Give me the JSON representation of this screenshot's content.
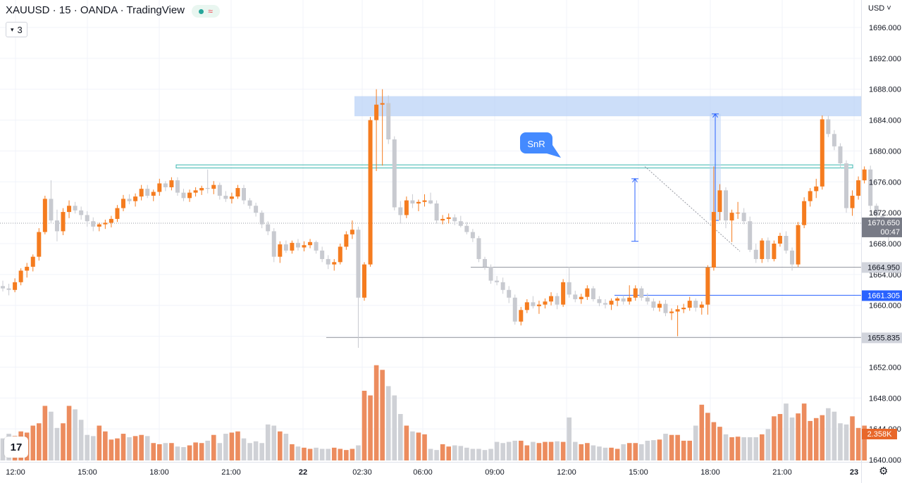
{
  "header": {
    "symbol": "XAUUSD",
    "interval": "15",
    "broker": "OANDA",
    "platform": "TradingView",
    "separator": " · ",
    "indicator_count": "3",
    "currency": "USD"
  },
  "chart_data": {
    "type": "candlestick",
    "time_axis_labels": [
      "12:00",
      "15:00",
      "18:00",
      "21:00",
      "22",
      "02:30",
      "06:00",
      "09:00",
      "12:00",
      "15:00",
      "18:00",
      "21:00",
      "23"
    ],
    "price_axis_labels": [
      "1696.000",
      "1692.000",
      "1688.000",
      "1684.000",
      "1680.000",
      "1676.000",
      "1672.000",
      "1668.000",
      "1664.000",
      "1660.000",
      "1656.000",
      "1652.000",
      "1648.000",
      "1644.000",
      "1640.000"
    ],
    "ylim": [
      1639.5,
      1698
    ],
    "grid": true,
    "colors": {
      "up": "#f57c1f",
      "down": "#c8cad0",
      "volume_up": "#ec8c5e",
      "volume_down": "#cfd1d6",
      "zone": "#bbd3f7",
      "line_teal": "#3bb7b0",
      "line_blue": "#2962ff",
      "line_gray": "#9598a1",
      "last_price": "#787b86",
      "label_orange": "#f57c1f",
      "label_blue": "#2962ff",
      "label_gray": "#d1d4dc"
    },
    "candles": [
      [
        1662.5,
        1663.2,
        1661.8,
        1662.2
      ],
      [
        1662.2,
        1662.8,
        1661.3,
        1662.0
      ],
      [
        1662.0,
        1663.5,
        1661.7,
        1663.0
      ],
      [
        1663.0,
        1664.8,
        1662.6,
        1664.5
      ],
      [
        1664.5,
        1665.5,
        1663.6,
        1665.0
      ],
      [
        1665.0,
        1666.6,
        1664.4,
        1666.3
      ],
      [
        1666.3,
        1670.0,
        1665.8,
        1669.5
      ],
      [
        1669.5,
        1674.2,
        1669.2,
        1673.8
      ],
      [
        1673.8,
        1676.2,
        1670.6,
        1671.0
      ],
      [
        1671.0,
        1672.4,
        1668.3,
        1669.6
      ],
      [
        1669.6,
        1672.6,
        1669.1,
        1672.1
      ],
      [
        1672.1,
        1673.6,
        1671.3,
        1672.9
      ],
      [
        1672.9,
        1673.4,
        1671.9,
        1672.3
      ],
      [
        1672.3,
        1672.8,
        1671.1,
        1671.7
      ],
      [
        1671.7,
        1672.2,
        1670.2,
        1670.9
      ],
      [
        1670.9,
        1671.4,
        1669.6,
        1670.2
      ],
      [
        1670.2,
        1670.7,
        1669.6,
        1670.5
      ],
      [
        1670.5,
        1671.1,
        1669.9,
        1670.7
      ],
      [
        1670.7,
        1671.6,
        1670.1,
        1671.2
      ],
      [
        1671.2,
        1673.0,
        1670.8,
        1672.6
      ],
      [
        1672.6,
        1674.3,
        1672.2,
        1673.8
      ],
      [
        1673.8,
        1674.4,
        1673.1,
        1673.5
      ],
      [
        1673.5,
        1674.5,
        1672.8,
        1674.1
      ],
      [
        1674.1,
        1675.6,
        1673.6,
        1675.1
      ],
      [
        1675.1,
        1675.6,
        1673.9,
        1674.2
      ],
      [
        1674.2,
        1675.0,
        1673.5,
        1674.7
      ],
      [
        1674.7,
        1676.4,
        1674.2,
        1675.8
      ],
      [
        1675.8,
        1676.1,
        1674.8,
        1675.3
      ],
      [
        1675.3,
        1676.6,
        1674.9,
        1676.2
      ],
      [
        1676.2,
        1676.6,
        1674.2,
        1674.6
      ],
      [
        1674.6,
        1675.1,
        1673.5,
        1673.9
      ],
      [
        1673.9,
        1675.0,
        1673.4,
        1674.6
      ],
      [
        1674.6,
        1675.3,
        1674.1,
        1674.9
      ],
      [
        1674.9,
        1675.5,
        1674.3,
        1675.2
      ],
      [
        1675.2,
        1677.6,
        1674.5,
        1675.1
      ],
      [
        1675.1,
        1676.1,
        1674.4,
        1675.6
      ],
      [
        1675.6,
        1675.9,
        1673.7,
        1674.2
      ],
      [
        1674.2,
        1674.8,
        1673.4,
        1673.8
      ],
      [
        1673.8,
        1674.6,
        1673.2,
        1674.1
      ],
      [
        1674.1,
        1675.6,
        1673.8,
        1675.2
      ],
      [
        1675.2,
        1675.6,
        1673.1,
        1673.6
      ],
      [
        1673.6,
        1673.9,
        1672.5,
        1672.9
      ],
      [
        1672.9,
        1673.3,
        1671.5,
        1672.0
      ],
      [
        1672.0,
        1672.3,
        1670.0,
        1670.5
      ],
      [
        1670.5,
        1670.9,
        1669.1,
        1669.6
      ],
      [
        1669.6,
        1670.0,
        1665.6,
        1666.3
      ],
      [
        1666.3,
        1668.3,
        1665.5,
        1667.9
      ],
      [
        1667.9,
        1668.4,
        1666.8,
        1667.1
      ],
      [
        1667.1,
        1668.4,
        1666.7,
        1668.1
      ],
      [
        1668.1,
        1668.6,
        1667.1,
        1667.5
      ],
      [
        1667.5,
        1668.3,
        1667.0,
        1667.8
      ],
      [
        1667.8,
        1668.6,
        1667.4,
        1668.2
      ],
      [
        1668.2,
        1668.4,
        1666.7,
        1667.1
      ],
      [
        1667.1,
        1667.6,
        1665.6,
        1666.0
      ],
      [
        1666.0,
        1666.5,
        1664.7,
        1665.3
      ],
      [
        1665.3,
        1666.0,
        1664.5,
        1665.6
      ],
      [
        1665.6,
        1668.0,
        1665.3,
        1667.6
      ],
      [
        1667.6,
        1669.6,
        1667.2,
        1669.2
      ],
      [
        1669.2,
        1671.0,
        1668.6,
        1669.8
      ],
      [
        1669.8,
        1670.2,
        1654.5,
        1661.0
      ],
      [
        1661.0,
        1665.6,
        1660.6,
        1665.3
      ],
      [
        1665.3,
        1684.4,
        1665.0,
        1684.0
      ],
      [
        1684.0,
        1688.0,
        1677.4,
        1686.0
      ],
      [
        1686.0,
        1688.0,
        1678.1,
        1686.2
      ],
      [
        1686.2,
        1687.2,
        1680.9,
        1681.5
      ],
      [
        1681.5,
        1681.9,
        1672.3,
        1672.7
      ],
      [
        1672.7,
        1673.5,
        1670.6,
        1671.7
      ],
      [
        1671.7,
        1674.1,
        1671.3,
        1673.6
      ],
      [
        1673.6,
        1674.4,
        1672.6,
        1673.2
      ],
      [
        1673.2,
        1673.7,
        1672.2,
        1673.4
      ],
      [
        1673.4,
        1674.4,
        1672.8,
        1673.6
      ],
      [
        1673.6,
        1674.6,
        1673.1,
        1673.2
      ],
      [
        1673.2,
        1673.6,
        1670.6,
        1671.0
      ],
      [
        1671.0,
        1671.7,
        1670.5,
        1671.2
      ],
      [
        1671.2,
        1671.9,
        1670.6,
        1671.4
      ],
      [
        1671.4,
        1671.8,
        1670.4,
        1670.9
      ],
      [
        1670.9,
        1671.6,
        1670.1,
        1670.3
      ],
      [
        1670.3,
        1670.8,
        1669.2,
        1669.5
      ],
      [
        1669.5,
        1669.9,
        1668.2,
        1668.7
      ],
      [
        1668.7,
        1669.0,
        1665.6,
        1666.0
      ],
      [
        1666.0,
        1666.3,
        1664.6,
        1665.0
      ],
      [
        1665.0,
        1665.3,
        1662.8,
        1663.2
      ],
      [
        1663.2,
        1663.8,
        1662.6,
        1663.0
      ],
      [
        1663.0,
        1663.6,
        1661.5,
        1662.0
      ],
      [
        1662.0,
        1662.5,
        1660.3,
        1661.0
      ],
      [
        1661.0,
        1661.4,
        1657.5,
        1657.9
      ],
      [
        1657.9,
        1659.8,
        1657.4,
        1659.4
      ],
      [
        1659.4,
        1660.8,
        1659.0,
        1660.4
      ],
      [
        1660.4,
        1661.2,
        1659.6,
        1659.9
      ],
      [
        1659.9,
        1660.6,
        1658.9,
        1660.1
      ],
      [
        1660.1,
        1660.9,
        1659.6,
        1660.5
      ],
      [
        1660.5,
        1661.7,
        1660.0,
        1661.2
      ],
      [
        1661.2,
        1661.6,
        1659.5,
        1660.1
      ],
      [
        1660.1,
        1663.4,
        1659.8,
        1663.0
      ],
      [
        1663.0,
        1665.0,
        1661.0,
        1661.4
      ],
      [
        1661.4,
        1661.9,
        1660.4,
        1660.8
      ],
      [
        1660.8,
        1661.5,
        1660.2,
        1661.1
      ],
      [
        1661.1,
        1662.6,
        1660.7,
        1662.2
      ],
      [
        1662.2,
        1662.5,
        1660.5,
        1660.8
      ],
      [
        1660.8,
        1661.2,
        1659.9,
        1660.3
      ],
      [
        1660.3,
        1660.8,
        1659.6,
        1660.1
      ],
      [
        1660.1,
        1660.9,
        1659.4,
        1660.6
      ],
      [
        1660.6,
        1661.1,
        1659.9,
        1660.9
      ],
      [
        1660.9,
        1661.3,
        1660.1,
        1660.5
      ],
      [
        1660.5,
        1662.6,
        1660.1,
        1661.0
      ],
      [
        1661.0,
        1662.6,
        1660.6,
        1662.2
      ],
      [
        1662.2,
        1662.5,
        1660.6,
        1661.0
      ],
      [
        1661.0,
        1661.6,
        1660.1,
        1660.5
      ],
      [
        1660.5,
        1660.9,
        1659.3,
        1659.7
      ],
      [
        1659.7,
        1660.6,
        1659.2,
        1660.2
      ],
      [
        1660.2,
        1660.7,
        1658.6,
        1659.0
      ],
      [
        1659.0,
        1659.6,
        1658.1,
        1659.2
      ],
      [
        1659.2,
        1660.0,
        1656.0,
        1659.5
      ],
      [
        1659.5,
        1660.2,
        1659.0,
        1659.7
      ],
      [
        1659.7,
        1661.1,
        1659.3,
        1660.6
      ],
      [
        1660.6,
        1660.9,
        1659.2,
        1659.7
      ],
      [
        1659.7,
        1660.5,
        1658.8,
        1660.1
      ],
      [
        1660.1,
        1665.2,
        1658.8,
        1664.9
      ],
      [
        1664.9,
        1678.0,
        1664.5,
        1672.1
      ],
      [
        1672.1,
        1675.7,
        1671.0,
        1674.9
      ],
      [
        1674.9,
        1675.3,
        1670.0,
        1671.0
      ],
      [
        1671.0,
        1672.4,
        1668.2,
        1672.0
      ],
      [
        1672.0,
        1673.4,
        1671.2,
        1672.0
      ],
      [
        1672.0,
        1672.6,
        1670.5,
        1670.9
      ],
      [
        1670.9,
        1671.5,
        1666.9,
        1667.2
      ],
      [
        1667.2,
        1668.0,
        1665.5,
        1666.0
      ],
      [
        1666.0,
        1668.7,
        1665.5,
        1668.4
      ],
      [
        1668.4,
        1668.8,
        1665.6,
        1666.0
      ],
      [
        1666.0,
        1668.4,
        1665.7,
        1668.0
      ],
      [
        1668.0,
        1669.4,
        1667.6,
        1669.0
      ],
      [
        1669.0,
        1669.6,
        1666.7,
        1667.1
      ],
      [
        1667.1,
        1667.5,
        1664.5,
        1665.3
      ],
      [
        1665.3,
        1670.8,
        1665.0,
        1670.4
      ],
      [
        1670.4,
        1674.0,
        1670.0,
        1673.5
      ],
      [
        1673.5,
        1675.2,
        1672.8,
        1674.8
      ],
      [
        1674.8,
        1676.4,
        1673.9,
        1675.4
      ],
      [
        1675.4,
        1684.6,
        1675.0,
        1684.1
      ],
      [
        1684.1,
        1684.6,
        1681.8,
        1682.2
      ],
      [
        1682.2,
        1682.7,
        1680.1,
        1680.6
      ],
      [
        1680.6,
        1681.0,
        1677.8,
        1678.4
      ],
      [
        1678.4,
        1678.8,
        1672.0,
        1672.6
      ],
      [
        1672.6,
        1674.9,
        1671.6,
        1674.2
      ],
      [
        1674.2,
        1676.7,
        1673.7,
        1676.2
      ],
      [
        1676.2,
        1678.0,
        1675.8,
        1677.6
      ],
      [
        1677.6,
        1678.1,
        1672.4,
        1672.9
      ],
      [
        1672.9,
        1673.2,
        1671.0,
        1671.6
      ],
      [
        1671.6,
        1671.9,
        1670.3,
        1670.7
      ],
      [
        1670.7,
        1671.1,
        1668.2,
        1669.6
      ]
    ],
    "volume_max": 1000,
    "volumes": [
      190,
      230,
      210,
      250,
      240,
      300,
      320,
      470,
      420,
      280,
      320,
      470,
      440,
      350,
      220,
      210,
      300,
      250,
      180,
      190,
      230,
      200,
      210,
      220,
      210,
      150,
      140,
      150,
      150,
      120,
      115,
      130,
      155,
      150,
      170,
      220,
      150,
      230,
      240,
      250,
      190,
      150,
      165,
      150,
      310,
      300,
      250,
      230,
      140,
      120,
      110,
      100,
      110,
      100,
      100,
      110,
      100,
      90,
      100,
      130,
      600,
      560,
      820,
      780,
      640,
      560,
      400,
      300,
      250,
      240,
      225,
      100,
      90,
      140,
      120,
      130,
      125,
      110,
      100,
      100,
      90,
      100,
      160,
      150,
      160,
      170,
      170,
      130,
      160,
      150,
      160,
      160,
      165,
      160,
      370,
      160,
      140,
      150,
      130,
      120,
      110,
      110,
      100,
      140,
      150,
      150,
      140,
      170,
      175,
      180,
      230,
      220,
      220,
      170,
      170,
      300,
      480,
      410,
      330,
      290,
      225,
      200,
      205,
      200,
      200,
      200,
      225,
      270,
      380,
      400,
      490,
      370,
      405,
      490,
      340,
      365,
      390,
      450,
      420,
      320,
      310,
      380,
      280,
      300
    ]
  },
  "annotations": {
    "snr_label": "SnR",
    "price_tags": [
      "1670.650",
      "00:47",
      "1664.950",
      "1661.305",
      "1655.835"
    ],
    "volume_tag": "2.358K"
  }
}
